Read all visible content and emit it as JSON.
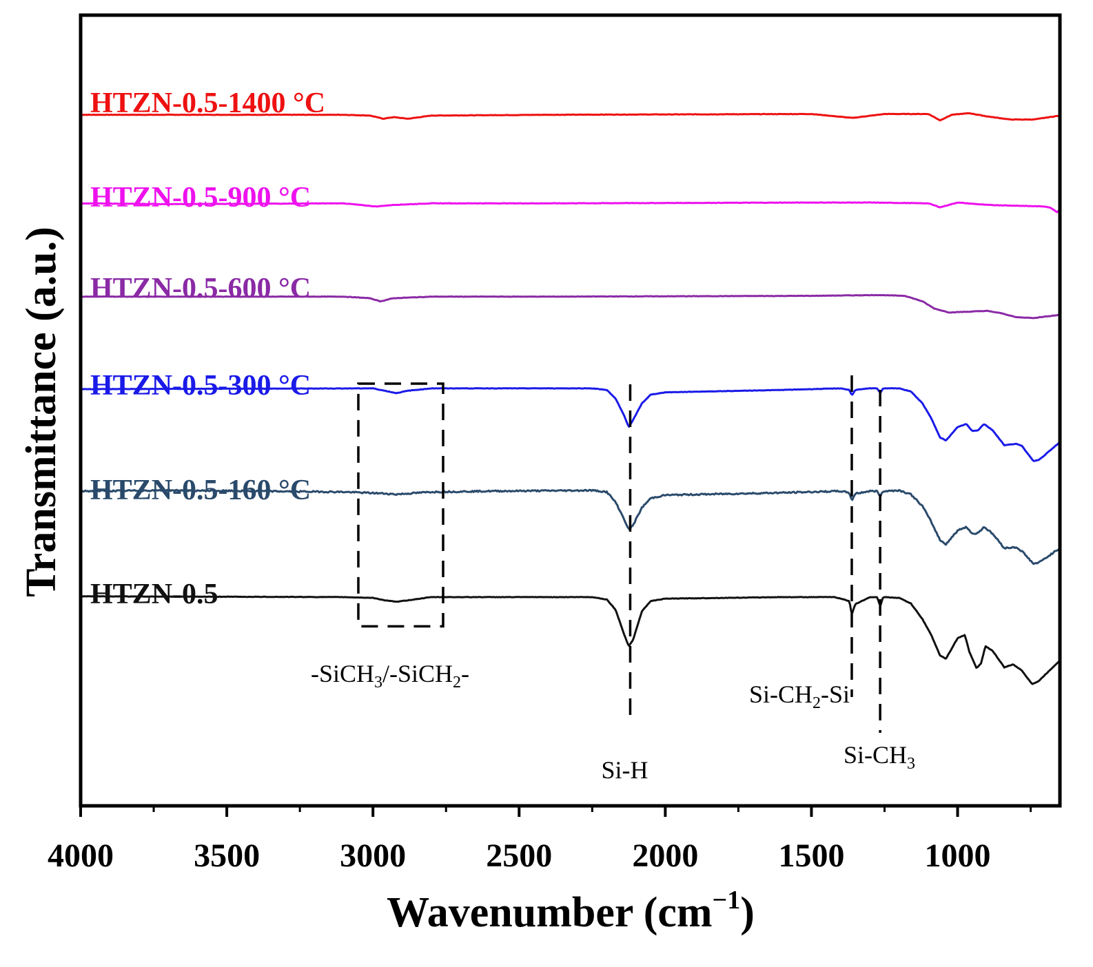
{
  "chart_data": {
    "type": "line",
    "xlabel": "Wavenumber (cm",
    "xlabel_sup": "−1",
    "xlabel_close": ")",
    "ylabel": "Transmittance (a.u.)",
    "xlim": [
      4000,
      650
    ],
    "x_ticks": [
      4000,
      3500,
      3000,
      2500,
      2000,
      1500,
      1000
    ],
    "x_tick_labels": [
      "4000",
      "3500",
      "3000",
      "2500",
      "2000",
      "1500",
      "1000"
    ],
    "x_minor_ticks": [
      3750,
      3250,
      2750,
      2250,
      1750,
      1250,
      750
    ],
    "ylim": [
      0,
      100
    ],
    "series": [
      {
        "name": "HTZN-0.5-1400 °C",
        "color": "#ee1111",
        "baseline": 87.4,
        "points": [
          [
            4000,
            87.4
          ],
          [
            3100,
            87.4
          ],
          [
            3010,
            87.3
          ],
          [
            2965,
            86.9
          ],
          [
            2930,
            87.1
          ],
          [
            2880,
            86.9
          ],
          [
            2800,
            87.3
          ],
          [
            2400,
            87.4
          ],
          [
            1500,
            87.5
          ],
          [
            1360,
            87.0
          ],
          [
            1250,
            87.5
          ],
          [
            1100,
            87.5
          ],
          [
            1060,
            86.7
          ],
          [
            1020,
            87.4
          ],
          [
            960,
            87.6
          ],
          [
            900,
            87.2
          ],
          [
            820,
            86.8
          ],
          [
            740,
            86.8
          ],
          [
            650,
            87.3
          ]
        ]
      },
      {
        "name": "HTZN-0.5-900 °C",
        "color": "#ee11ee",
        "baseline": 76.2,
        "points": [
          [
            4000,
            76.2
          ],
          [
            3700,
            76.1
          ],
          [
            3100,
            76.2
          ],
          [
            2990,
            75.8
          ],
          [
            2930,
            76.0
          ],
          [
            2800,
            76.2
          ],
          [
            2400,
            76.2
          ],
          [
            1500,
            76.3
          ],
          [
            1300,
            76.3
          ],
          [
            1100,
            76.2
          ],
          [
            1060,
            75.7
          ],
          [
            1000,
            76.3
          ],
          [
            900,
            76.0
          ],
          [
            700,
            75.8
          ],
          [
            680,
            75.6
          ],
          [
            660,
            75.1
          ],
          [
            650,
            75.4
          ]
        ]
      },
      {
        "name": "HTZN-0.5-600 °C",
        "color": "#8a2aa5",
        "baseline": 64.4,
        "points": [
          [
            4000,
            64.4
          ],
          [
            3100,
            64.4
          ],
          [
            3010,
            64.2
          ],
          [
            2975,
            63.8
          ],
          [
            2930,
            64.2
          ],
          [
            2800,
            64.4
          ],
          [
            2400,
            64.4
          ],
          [
            1500,
            64.5
          ],
          [
            1270,
            64.6
          ],
          [
            1180,
            64.5
          ],
          [
            1120,
            63.8
          ],
          [
            1080,
            62.9
          ],
          [
            1030,
            62.4
          ],
          [
            960,
            62.5
          ],
          [
            900,
            62.6
          ],
          [
            850,
            62.3
          ],
          [
            800,
            61.8
          ],
          [
            740,
            61.7
          ],
          [
            650,
            62.1
          ]
        ]
      },
      {
        "name": "HTZN-0.5-300 °C",
        "color": "#1a1ae8",
        "baseline": 52.8,
        "points": [
          [
            4000,
            52.7
          ],
          [
            3000,
            52.8
          ],
          [
            2960,
            52.5
          ],
          [
            2920,
            52.2
          ],
          [
            2880,
            52.5
          ],
          [
            2800,
            52.8
          ],
          [
            2250,
            52.8
          ],
          [
            2200,
            52.6
          ],
          [
            2170,
            51.5
          ],
          [
            2140,
            49.3
          ],
          [
            2125,
            47.9
          ],
          [
            2110,
            48.8
          ],
          [
            2080,
            50.9
          ],
          [
            2050,
            52.0
          ],
          [
            2000,
            52.3
          ],
          [
            1600,
            52.6
          ],
          [
            1400,
            52.8
          ],
          [
            1370,
            52.6
          ],
          [
            1362,
            51.9
          ],
          [
            1350,
            52.6
          ],
          [
            1300,
            52.8
          ],
          [
            1275,
            52.8
          ],
          [
            1265,
            52.2
          ],
          [
            1255,
            52.8
          ],
          [
            1200,
            52.8
          ],
          [
            1160,
            52.4
          ],
          [
            1120,
            50.9
          ],
          [
            1090,
            49.0
          ],
          [
            1060,
            46.6
          ],
          [
            1040,
            46.2
          ],
          [
            1000,
            47.9
          ],
          [
            970,
            48.3
          ],
          [
            950,
            47.4
          ],
          [
            930,
            47.5
          ],
          [
            910,
            48.3
          ],
          [
            880,
            47.5
          ],
          [
            840,
            45.6
          ],
          [
            800,
            45.8
          ],
          [
            780,
            45.5
          ],
          [
            740,
            43.6
          ],
          [
            720,
            43.8
          ],
          [
            650,
            46.0
          ]
        ]
      },
      {
        "name": "HTZN-0.5-160 °C",
        "color": "#2a4a6b",
        "baseline": 39.8,
        "points": [
          [
            4000,
            39.8
          ],
          [
            3700,
            39.9
          ],
          [
            3100,
            39.7
          ],
          [
            2960,
            39.5
          ],
          [
            2920,
            39.4
          ],
          [
            2880,
            39.5
          ],
          [
            2800,
            39.7
          ],
          [
            2600,
            39.8
          ],
          [
            2250,
            39.9
          ],
          [
            2200,
            39.7
          ],
          [
            2170,
            38.4
          ],
          [
            2140,
            36.2
          ],
          [
            2125,
            34.9
          ],
          [
            2110,
            35.5
          ],
          [
            2080,
            37.7
          ],
          [
            2050,
            38.9
          ],
          [
            2000,
            39.3
          ],
          [
            1600,
            39.6
          ],
          [
            1400,
            39.8
          ],
          [
            1370,
            39.6
          ],
          [
            1362,
            38.6
          ],
          [
            1350,
            39.5
          ],
          [
            1300,
            39.8
          ],
          [
            1275,
            39.8
          ],
          [
            1265,
            39.1
          ],
          [
            1255,
            39.8
          ],
          [
            1200,
            39.9
          ],
          [
            1160,
            39.4
          ],
          [
            1120,
            37.9
          ],
          [
            1090,
            35.9
          ],
          [
            1060,
            33.6
          ],
          [
            1040,
            33.1
          ],
          [
            1000,
            34.8
          ],
          [
            970,
            35.3
          ],
          [
            950,
            34.4
          ],
          [
            930,
            34.5
          ],
          [
            910,
            35.3
          ],
          [
            880,
            34.4
          ],
          [
            840,
            32.6
          ],
          [
            800,
            32.7
          ],
          [
            780,
            32.2
          ],
          [
            740,
            30.6
          ],
          [
            720,
            30.8
          ],
          [
            650,
            32.6
          ]
        ]
      },
      {
        "name": "HTZN-0.5",
        "color": "#111111",
        "baseline": 26.5,
        "points": [
          [
            4000,
            26.5
          ],
          [
            3100,
            26.4
          ],
          [
            3000,
            26.3
          ],
          [
            2960,
            26.0
          ],
          [
            2920,
            25.8
          ],
          [
            2880,
            26.0
          ],
          [
            2800,
            26.4
          ],
          [
            2250,
            26.4
          ],
          [
            2200,
            26.1
          ],
          [
            2170,
            24.8
          ],
          [
            2140,
            21.6
          ],
          [
            2125,
            20.2
          ],
          [
            2110,
            21.0
          ],
          [
            2080,
            24.6
          ],
          [
            2050,
            25.9
          ],
          [
            2000,
            26.2
          ],
          [
            1600,
            26.4
          ],
          [
            1420,
            26.4
          ],
          [
            1370,
            25.9
          ],
          [
            1362,
            24.2
          ],
          [
            1350,
            25.5
          ],
          [
            1300,
            26.4
          ],
          [
            1275,
            26.4
          ],
          [
            1265,
            25.2
          ],
          [
            1255,
            26.4
          ],
          [
            1200,
            26.3
          ],
          [
            1160,
            25.6
          ],
          [
            1120,
            23.6
          ],
          [
            1090,
            21.6
          ],
          [
            1060,
            19.0
          ],
          [
            1040,
            18.6
          ],
          [
            1000,
            21.2
          ],
          [
            975,
            21.6
          ],
          [
            960,
            19.5
          ],
          [
            935,
            17.4
          ],
          [
            920,
            18.0
          ],
          [
            905,
            20.2
          ],
          [
            880,
            19.6
          ],
          [
            840,
            17.5
          ],
          [
            810,
            17.9
          ],
          [
            780,
            17.1
          ],
          [
            745,
            15.4
          ],
          [
            725,
            15.7
          ],
          [
            650,
            18.4
          ]
        ]
      }
    ],
    "annotations": [
      {
        "text": "-SiCH",
        "sub1": "3",
        "mid": "/-SiCH",
        "sub2": "2",
        "tail": "-"
      },
      {
        "text": "Si-H"
      },
      {
        "text": "Si-CH",
        "sub": "2",
        "tail": "-Si"
      },
      {
        "text": "Si-CH",
        "sub": "3"
      }
    ],
    "dashed_lines": [
      2120,
      1362,
      1265
    ],
    "dashed_box": {
      "x_from": 3050,
      "x_to": 2760,
      "y_from": 22.7,
      "y_to": 53.4
    }
  }
}
